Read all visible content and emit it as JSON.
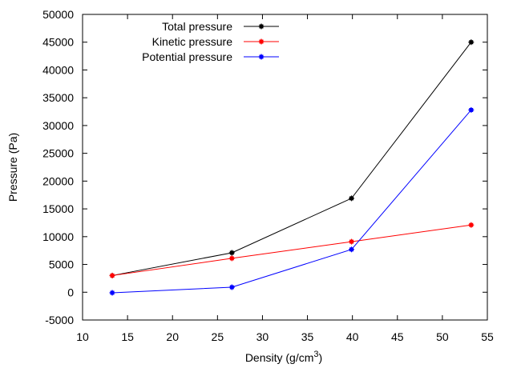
{
  "chart_data": {
    "type": "line",
    "xlabel": "Density (g/cm",
    "xlabel_superscript": "3",
    "xlabel_suffix": ")",
    "ylabel": "Pressure (Pa)",
    "xlim": [
      10,
      55
    ],
    "ylim": [
      -5000,
      50000
    ],
    "xticks": [
      "10",
      "15",
      "20",
      "25",
      "30",
      "35",
      "40",
      "45",
      "50",
      "55"
    ],
    "yticks": [
      "-5000",
      "0",
      "5000",
      "10000",
      "15000",
      "20000",
      "25000",
      "30000",
      "35000",
      "40000",
      "45000",
      "50000"
    ],
    "x": [
      13.3,
      26.6,
      39.9,
      53.2
    ],
    "series": [
      {
        "name": "Total pressure",
        "color": "#000000",
        "values": [
          3000,
          7100,
          16900,
          45000
        ]
      },
      {
        "name": "Kinetic pressure",
        "color": "#ff0000",
        "values": [
          3000,
          6100,
          9100,
          12100
        ]
      },
      {
        "name": "Potential pressure",
        "color": "#0000ff",
        "values": [
          -100,
          900,
          7700,
          32800
        ]
      }
    ],
    "legend_position": "top-left",
    "grid": false
  }
}
